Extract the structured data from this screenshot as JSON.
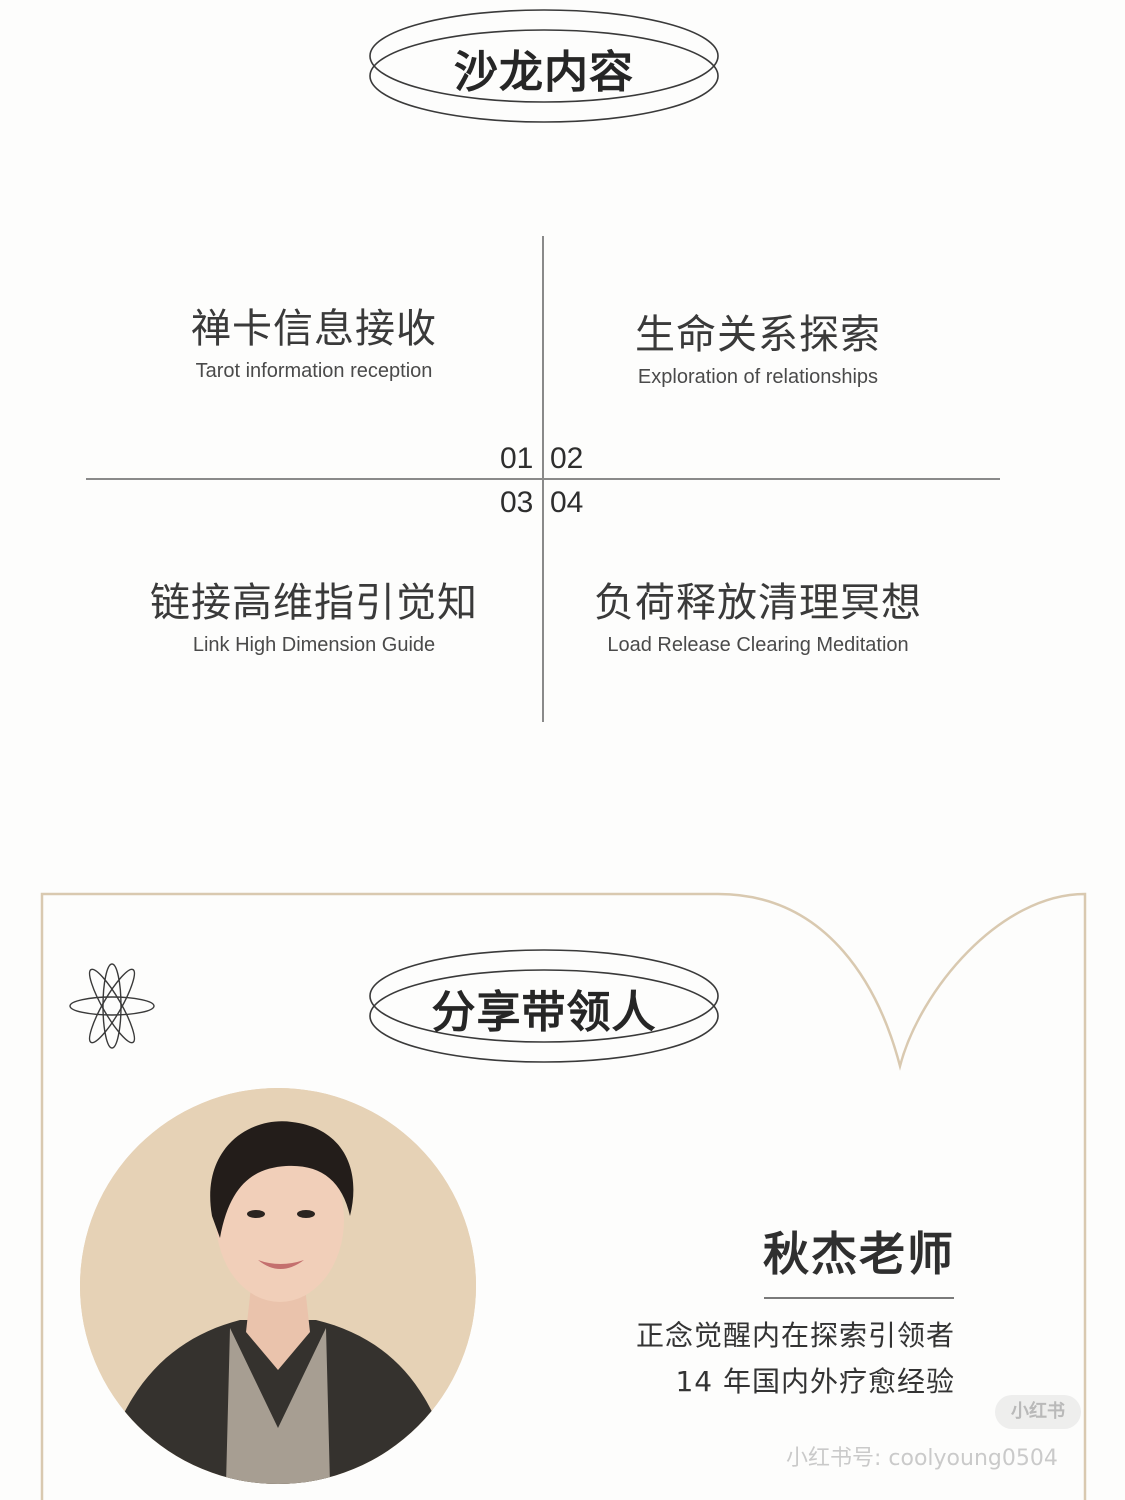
{
  "salon": {
    "title": "沙龙内容",
    "items": [
      {
        "num": "01",
        "cn": "禅卡信息接收",
        "en": "Tarot information reception"
      },
      {
        "num": "02",
        "cn": "生命关系探索",
        "en": "Exploration of relationships"
      },
      {
        "num": "03",
        "cn": "链接高维指引觉知",
        "en": "Link High Dimension Guide"
      },
      {
        "num": "04",
        "cn": "负荷释放清理冥想",
        "en": "Load Release Clearing Meditation"
      }
    ]
  },
  "leader": {
    "title": "分享带领人",
    "name": "秋杰老师",
    "desc": [
      "正念觉醒内在探索引领者",
      "14 年国内外疗愈经验"
    ]
  },
  "watermark": {
    "badge": "小红书",
    "text": "小红书号: coolyoung0504"
  },
  "colors": {
    "frame": "#d9c9b0",
    "portrait_bg": "#e6d2b6",
    "text": "#3b3b3b"
  },
  "icons": {
    "decor": "atom-star-icon"
  }
}
